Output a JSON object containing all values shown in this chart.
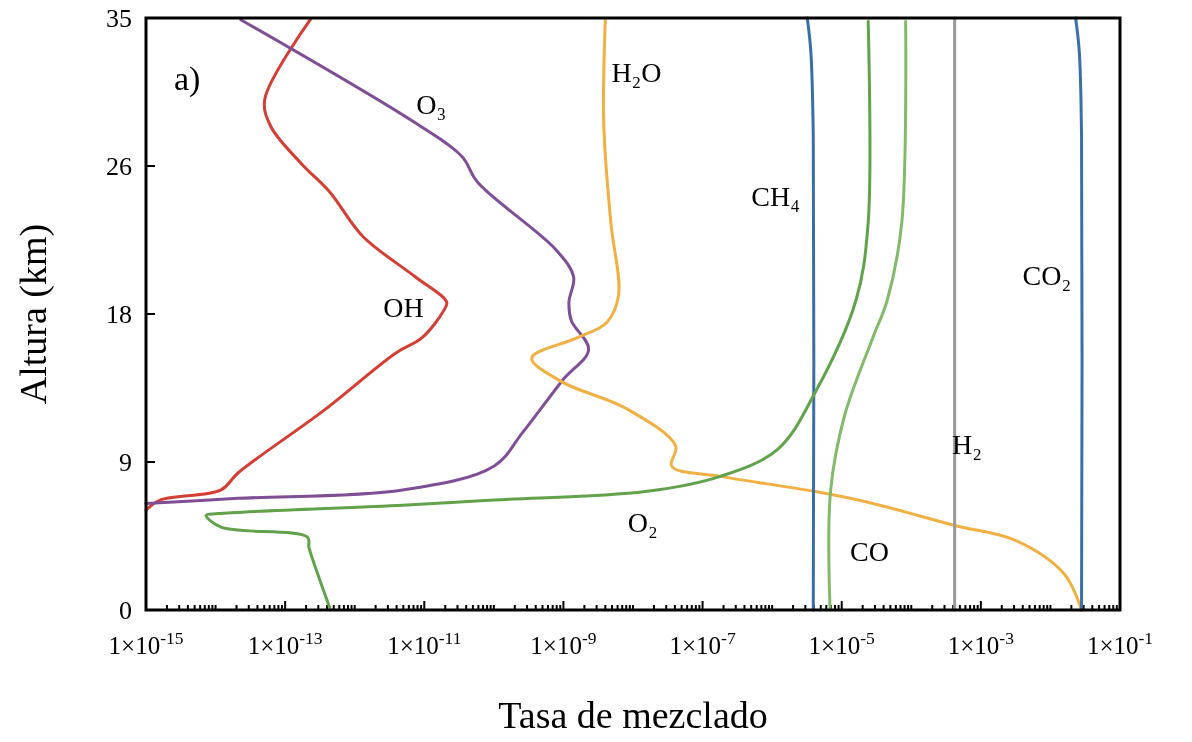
{
  "chart_data": {
    "type": "line",
    "xlabel": "Tasa de mezclado",
    "ylabel": "Altura (km)",
    "log": "x",
    "grid": false,
    "legend": false,
    "marker": "none",
    "line_style": "solid",
    "annotations": [
      "a)"
    ],
    "xlim": [
      1e-15,
      0.1
    ],
    "ylim": [
      0,
      35
    ],
    "yticks": [
      0,
      {
        "value": 8.75,
        "label": "9"
      },
      {
        "value": 17.5,
        "label": "18"
      },
      {
        "value": 26.25,
        "label": "26"
      },
      35
    ],
    "xticks": [
      {
        "value": 1e-15,
        "label": "1×10$^{-15}$"
      },
      {
        "value": 1e-13,
        "label": "1×10$^{-13}$"
      },
      {
        "value": 1e-11,
        "label": "1×10$^{-11}$"
      },
      {
        "value": 1e-09,
        "label": "1×10$^{-9}$"
      },
      {
        "value": 1e-07,
        "label": "1×10$^{-7}$"
      },
      {
        "value": 1e-05,
        "label": "1×10$^{-5}$"
      },
      {
        "value": 0.001,
        "label": "1×10$^{-3}$"
      },
      {
        "value": 0.1,
        "label": "1×10$^{-1}$"
      },
      {
        "value": 1e-14,
        "label": null
      },
      {
        "value": 1e-12,
        "label": null
      },
      {
        "value": 1e-10,
        "label": null
      },
      {
        "value": 1e-08,
        "label": null
      },
      {
        "value": 1e-06,
        "label": null
      },
      {
        "value": 0.0001,
        "label": null
      },
      {
        "value": 0.01,
        "label": null
      },
      {
        "value": 2e-15,
        "label": null
      },
      {
        "value": 3e-15,
        "label": null
      },
      {
        "value": 4e-15,
        "label": null
      },
      {
        "value": 5e-15,
        "label": null
      },
      {
        "value": 6e-15,
        "label": null
      },
      {
        "value": 7e-15,
        "label": null
      },
      {
        "value": 8e-15,
        "label": null
      },
      {
        "value": 9e-15,
        "label": null
      },
      {
        "value": 2e-14,
        "label": null
      },
      {
        "value": 3e-14,
        "label": null
      },
      {
        "value": 4e-14,
        "label": null
      },
      {
        "value": 5e-14,
        "label": null
      },
      {
        "value": 6e-14,
        "label": null
      },
      {
        "value": 7e-14,
        "label": null
      },
      {
        "value": 8e-14,
        "label": null
      },
      {
        "value": 9e-14,
        "label": null
      },
      {
        "value": 2e-13,
        "label": null
      },
      {
        "value": 3e-13,
        "label": null
      },
      {
        "value": 4e-13,
        "label": null
      },
      {
        "value": 5e-13,
        "label": null
      },
      {
        "value": 6e-13,
        "label": null
      },
      {
        "value": 7e-13,
        "label": null
      },
      {
        "value": 8e-13,
        "label": null
      },
      {
        "value": 9e-13,
        "label": null
      },
      {
        "value": 2e-12,
        "label": null
      },
      {
        "value": 3e-12,
        "label": null
      },
      {
        "value": 4e-12,
        "label": null
      },
      {
        "value": 5e-12,
        "label": null
      },
      {
        "value": 6e-12,
        "label": null
      },
      {
        "value": 7e-12,
        "label": null
      },
      {
        "value": 8e-12,
        "label": null
      },
      {
        "value": 9e-12,
        "label": null
      },
      {
        "value": 2e-11,
        "label": null
      },
      {
        "value": 3e-11,
        "label": null
      },
      {
        "value": 4e-11,
        "label": null
      },
      {
        "value": 5e-11,
        "label": null
      },
      {
        "value": 6e-11,
        "label": null
      },
      {
        "value": 7e-11,
        "label": null
      },
      {
        "value": 8e-11,
        "label": null
      },
      {
        "value": 9e-11,
        "label": null
      },
      {
        "value": 2e-10,
        "label": null
      },
      {
        "value": 3e-10,
        "label": null
      },
      {
        "value": 4e-10,
        "label": null
      },
      {
        "value": 5e-10,
        "label": null
      },
      {
        "value": 6e-10,
        "label": null
      },
      {
        "value": 7e-10,
        "label": null
      },
      {
        "value": 8e-10,
        "label": null
      },
      {
        "value": 9e-10,
        "label": null
      },
      {
        "value": 2e-09,
        "label": null
      },
      {
        "value": 3e-09,
        "label": null
      },
      {
        "value": 4e-09,
        "label": null
      },
      {
        "value": 5e-09,
        "label": null
      },
      {
        "value": 6e-09,
        "label": null
      },
      {
        "value": 7e-09,
        "label": null
      },
      {
        "value": 8e-09,
        "label": null
      },
      {
        "value": 9e-09,
        "label": null
      },
      {
        "value": 2e-08,
        "label": null
      },
      {
        "value": 3e-08,
        "label": null
      },
      {
        "value": 4e-08,
        "label": null
      },
      {
        "value": 5e-08,
        "label": null
      },
      {
        "value": 6e-08,
        "label": null
      },
      {
        "value": 7e-08,
        "label": null
      },
      {
        "value": 8e-08,
        "label": null
      },
      {
        "value": 9e-08,
        "label": null
      },
      {
        "value": 2e-07,
        "label": null
      },
      {
        "value": 3e-07,
        "label": null
      },
      {
        "value": 4e-07,
        "label": null
      },
      {
        "value": 5e-07,
        "label": null
      },
      {
        "value": 6e-07,
        "label": null
      },
      {
        "value": 7e-07,
        "label": null
      },
      {
        "value": 8e-07,
        "label": null
      },
      {
        "value": 9e-07,
        "label": null
      },
      {
        "value": 2e-06,
        "label": null
      },
      {
        "value": 3e-06,
        "label": null
      },
      {
        "value": 4e-06,
        "label": null
      },
      {
        "value": 5e-06,
        "label": null
      },
      {
        "value": 6e-06,
        "label": null
      },
      {
        "value": 7e-06,
        "label": null
      },
      {
        "value": 8e-06,
        "label": null
      },
      {
        "value": 9e-06,
        "label": null
      },
      {
        "value": 2e-05,
        "label": null
      },
      {
        "value": 3e-05,
        "label": null
      },
      {
        "value": 4e-05,
        "label": null
      },
      {
        "value": 5e-05,
        "label": null
      },
      {
        "value": 6e-05,
        "label": null
      },
      {
        "value": 7e-05,
        "label": null
      },
      {
        "value": 8e-05,
        "label": null
      },
      {
        "value": 9e-05,
        "label": null
      },
      {
        "value": 0.0002,
        "label": null
      },
      {
        "value": 0.0003,
        "label": null
      },
      {
        "value": 0.0004,
        "label": null
      },
      {
        "value": 0.0005,
        "label": null
      },
      {
        "value": 0.0006,
        "label": null
      },
      {
        "value": 0.0007,
        "label": null
      },
      {
        "value": 0.0008,
        "label": null
      },
      {
        "value": 0.0009,
        "label": null
      },
      {
        "value": 0.002,
        "label": null
      },
      {
        "value": 0.003,
        "label": null
      },
      {
        "value": 0.004,
        "label": null
      },
      {
        "value": 0.005,
        "label": null
      },
      {
        "value": 0.006,
        "label": null
      },
      {
        "value": 0.007,
        "label": null
      },
      {
        "value": 0.008,
        "label": null
      },
      {
        "value": 0.009,
        "label": null
      },
      {
        "value": 0.02,
        "label": null
      },
      {
        "value": 0.03,
        "label": null
      },
      {
        "value": 0.04,
        "label": null
      },
      {
        "value": 0.05,
        "label": null
      },
      {
        "value": 0.06,
        "label": null
      },
      {
        "value": 0.07,
        "label": null
      },
      {
        "value": 0.08,
        "label": null
      },
      {
        "value": 0.09,
        "label": null
      }
    ],
    "series": [
      {
        "name": "OH",
        "color": "#d13f35",
        "x": [
          2.3e-13,
          5.1e-14,
          6.2e-14,
          1.7e-13,
          4.4e-13,
          1.3e-12,
          7.4e-12,
          2.1e-11,
          1.9e-11,
          9.3e-12,
          3.9e-12,
          3.6e-13,
          2.1e-14,
          1.2e-14,
          1.6e-15,
          1e-15
        ],
        "values": [
          34.9,
          30.2,
          28.6,
          26.4,
          24.7,
          22.1,
          19.7,
          18.2,
          17.7,
          16.1,
          15.2,
          11.8,
          8.1,
          7.1,
          6.5,
          5.9
        ]
      },
      {
        "name": "O₃",
        "color": "#7f4f96",
        "x": [
          2.3e-14,
          7.4e-12,
          3.5e-11,
          5.8e-11,
          7.8e-10,
          1.4e-09,
          1.2e-09,
          1.3e-09,
          2.3e-09,
          9.8e-10,
          2.6e-10,
          1e-10,
          4.9e-12,
          2.1e-14,
          1e-15
        ],
        "values": [
          34.9,
          28.8,
          26.8,
          25.3,
          21.3,
          19.7,
          18.2,
          17.1,
          15.4,
          13.6,
          10.5,
          8.5,
          7.1,
          6.6,
          6.3
        ]
      },
      {
        "name": "H₂O",
        "color": "#f0b044",
        "x": [
          4e-09,
          3.8e-09,
          4.8e-09,
          6.2e-09,
          4.2e-09,
          1.6e-09,
          3.5e-10,
          9.4e-10,
          8.1e-09,
          4.1e-08,
          3.6e-08,
          1.8e-07,
          4.2e-06,
          2.8e-05,
          0.00042,
          0.0032,
          0.016,
          0.028
        ],
        "values": [
          34.9,
          28.7,
          22.9,
          18.6,
          17.0,
          16.1,
          14.9,
          13.5,
          11.9,
          9.7,
          8.5,
          7.9,
          7.0,
          6.3,
          5.0,
          4.1,
          2.1,
          0
        ]
      },
      {
        "name": "CH₄",
        "color": "#3a6ea5",
        "x": [
          3.9e-06,
          3.9e-06,
          3.6e-06,
          3.2e-06
        ],
        "values": [
          0,
          28,
          33,
          35
        ]
      },
      {
        "name": "O₂",
        "color": "#62a24c",
        "x": [
          4.4e-13,
          2.9e-13,
          2.2e-13,
          2.1e-13,
          1.2e-14,
          7.3e-15,
          1.1e-14,
          4.9e-12,
          1e-10,
          1.5e-08,
          1.8e-07,
          1.2e-06,
          4.2e-06,
          1.6e-05,
          2.4e-05,
          2.4e-05
        ],
        "values": [
          0.1,
          2.2,
          3.7,
          4.3,
          4.9,
          5.6,
          5.7,
          6.2,
          6.5,
          7.0,
          7.9,
          9.5,
          12.9,
          18.3,
          22.9,
          34.8
        ]
      },
      {
        "name": "CO",
        "color": "#83b96b",
        "x": [
          6.8e-06,
          6.9e-06,
          1.1e-05,
          2.8e-05,
          4.5e-05,
          7.3e-05,
          8.3e-05
        ],
        "values": [
          0,
          7.0,
          11.5,
          16.1,
          18.3,
          22.9,
          34.8
        ]
      },
      {
        "name": "H₂",
        "color": "#999999",
        "x": [
          0.00042,
          0.00042,
          0.00042,
          0.00042,
          0.00042
        ],
        "values": [
          0,
          9,
          18,
          27,
          35
        ]
      },
      {
        "name": "CO₂",
        "color": "#3b6fa6",
        "x": [
          0.028,
          0.028,
          0.026,
          0.023
        ],
        "values": [
          0,
          28,
          33,
          35
        ]
      }
    ]
  }
}
